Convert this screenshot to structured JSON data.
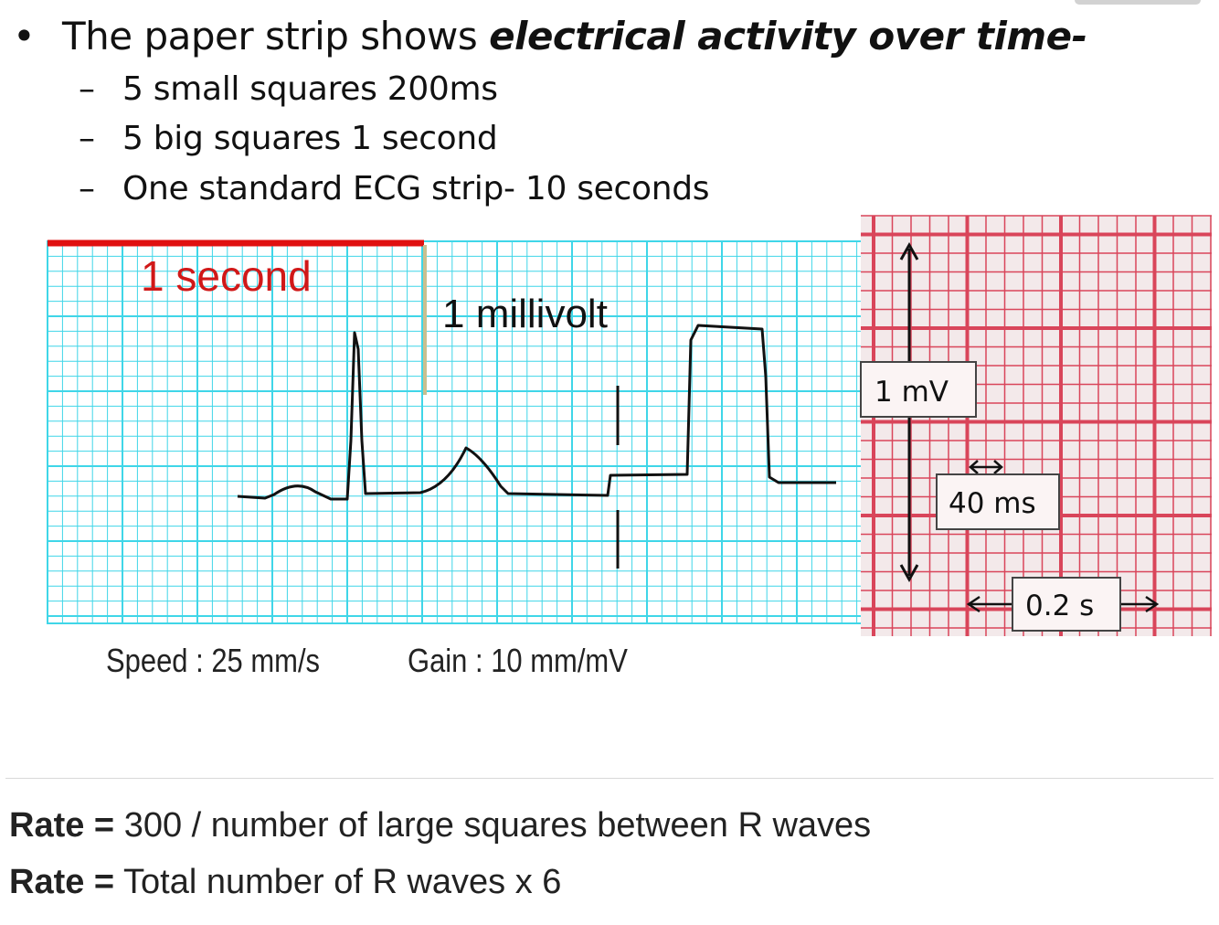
{
  "slide": {
    "bullet_prefix": "The paper strip shows ",
    "bullet_emphasis": "electrical activity over time-",
    "sub_items": [
      "5 small squares 200ms",
      "5 big squares 1 second",
      "One standard ECG strip- 10 seconds"
    ]
  },
  "ecg_strip": {
    "label_one_second": "1 second",
    "label_one_millivolt": "1 millivolt",
    "caption_speed": "Speed : 25 mm/s",
    "caption_gain": "Gain : 10 mm/mV",
    "grid_color": "#3fd6e8",
    "marker_color": "#e01010"
  },
  "paper_grid": {
    "label_1mv": "1 mV",
    "label_40ms": "40 ms",
    "label_02s": "0.2 s",
    "grid_color": "#d9455a"
  },
  "formulas": [
    {
      "label": "Rate =",
      "text": "300 / number of large squares between R waves"
    },
    {
      "label": "Rate =",
      "text": "Total number of R waves x 6"
    }
  ]
}
